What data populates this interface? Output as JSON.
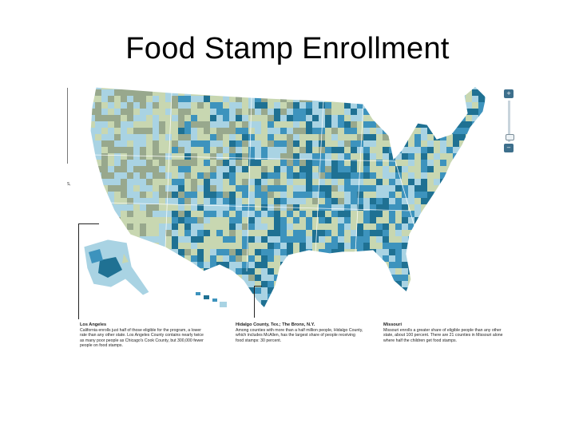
{
  "slide": {
    "title": "Food Stamp Enrollment"
  },
  "zoom": {
    "in_label": "+",
    "out_label": "−"
  },
  "side_stub": "S,",
  "palette": {
    "dark_teal": "#1f7193",
    "mid_blue": "#3d93bd",
    "light_blue": "#a9d3e3",
    "pale_green": "#c8d7b1",
    "olive_gray": "#98a88d"
  },
  "callouts": [
    {
      "title": "Los Angeles",
      "text": "California enrolls just half of those eligible for the program, a lower rate than any other state. Los Angeles County contains nearly twice as many poor people as Chicago's Cook County, but 300,000 fewer people on food stamps."
    },
    {
      "title": "Hidalgo County, Tex.; The Bronx, N.Y.",
      "text": "Among counties with more than a half million people, Hidalgo County, which includes McAllen, has the largest share of people receiving food stamps: 30 percent."
    },
    {
      "title": "Missouri",
      "text": "Missouri enrolls a greater share of eligible people than any other state, about 100 percent. There are 21 counties in Missouri alone where half the children get food stamps."
    }
  ]
}
